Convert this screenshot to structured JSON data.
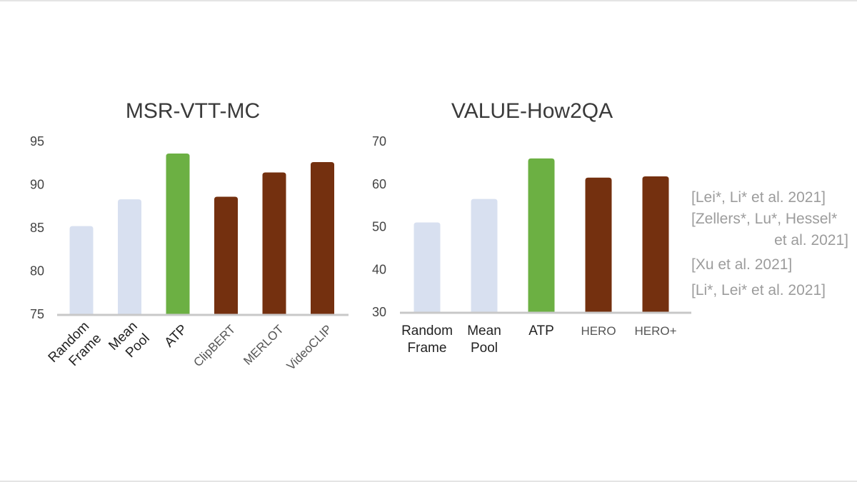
{
  "colors": {
    "baseline": "#d8e0f0",
    "ours": "#6cb043",
    "prior": "#74300f",
    "axis": "#c8c8c8",
    "ours_label": "#3f7f2a"
  },
  "chart_data": [
    {
      "type": "bar",
      "title": "MSR-VTT-MC",
      "categories": [
        "Random Frame",
        "Mean Pool",
        "ATP",
        "ClipBERT",
        "MERLOT",
        "VideoCLIP"
      ],
      "category_lines": [
        [
          "Random",
          "Frame"
        ],
        [
          "Mean",
          "Pool"
        ],
        [
          "ATP"
        ],
        [
          "ClipBERT"
        ],
        [
          "MERLOT"
        ],
        [
          "VideoCLIP"
        ]
      ],
      "values": [
        85.2,
        88.3,
        93.6,
        88.6,
        91.4,
        92.6
      ],
      "bar_groups": [
        "baseline",
        "baseline",
        "ours",
        "prior",
        "prior",
        "prior"
      ],
      "ylim": [
        75,
        95
      ],
      "yticks": [
        75,
        80,
        85,
        90,
        95
      ],
      "xlabel": "",
      "ylabel": "",
      "grid": false
    },
    {
      "type": "bar",
      "title": "VALUE-How2QA",
      "categories": [
        "Random Frame",
        "Mean Pool",
        "ATP",
        "HERO",
        "HERO+"
      ],
      "category_lines": [
        [
          "Random",
          "Frame"
        ],
        [
          "Mean",
          "Pool"
        ],
        [
          "ATP"
        ],
        [
          "HERO"
        ],
        [
          "HERO+"
        ]
      ],
      "values": [
        51.0,
        56.5,
        66.0,
        61.5,
        61.8
      ],
      "bar_groups": [
        "baseline",
        "baseline",
        "ours",
        "prior",
        "prior"
      ],
      "ylim": [
        30,
        70
      ],
      "yticks": [
        30,
        40,
        50,
        60,
        70
      ],
      "xlabel": "",
      "ylabel": "",
      "grid": false
    }
  ],
  "citations": [
    {
      "text": "[Lei*, Li* et al. 2021]",
      "align": "left"
    },
    {
      "text": "[Zellers*, Lu*, Hessel*",
      "align": "left"
    },
    {
      "text": "et al. 2021]",
      "align": "right"
    },
    {
      "text": "[Xu et al. 2021]",
      "align": "left"
    },
    {
      "text": "[Li*, Lei* et al. 2021]",
      "align": "left"
    }
  ]
}
